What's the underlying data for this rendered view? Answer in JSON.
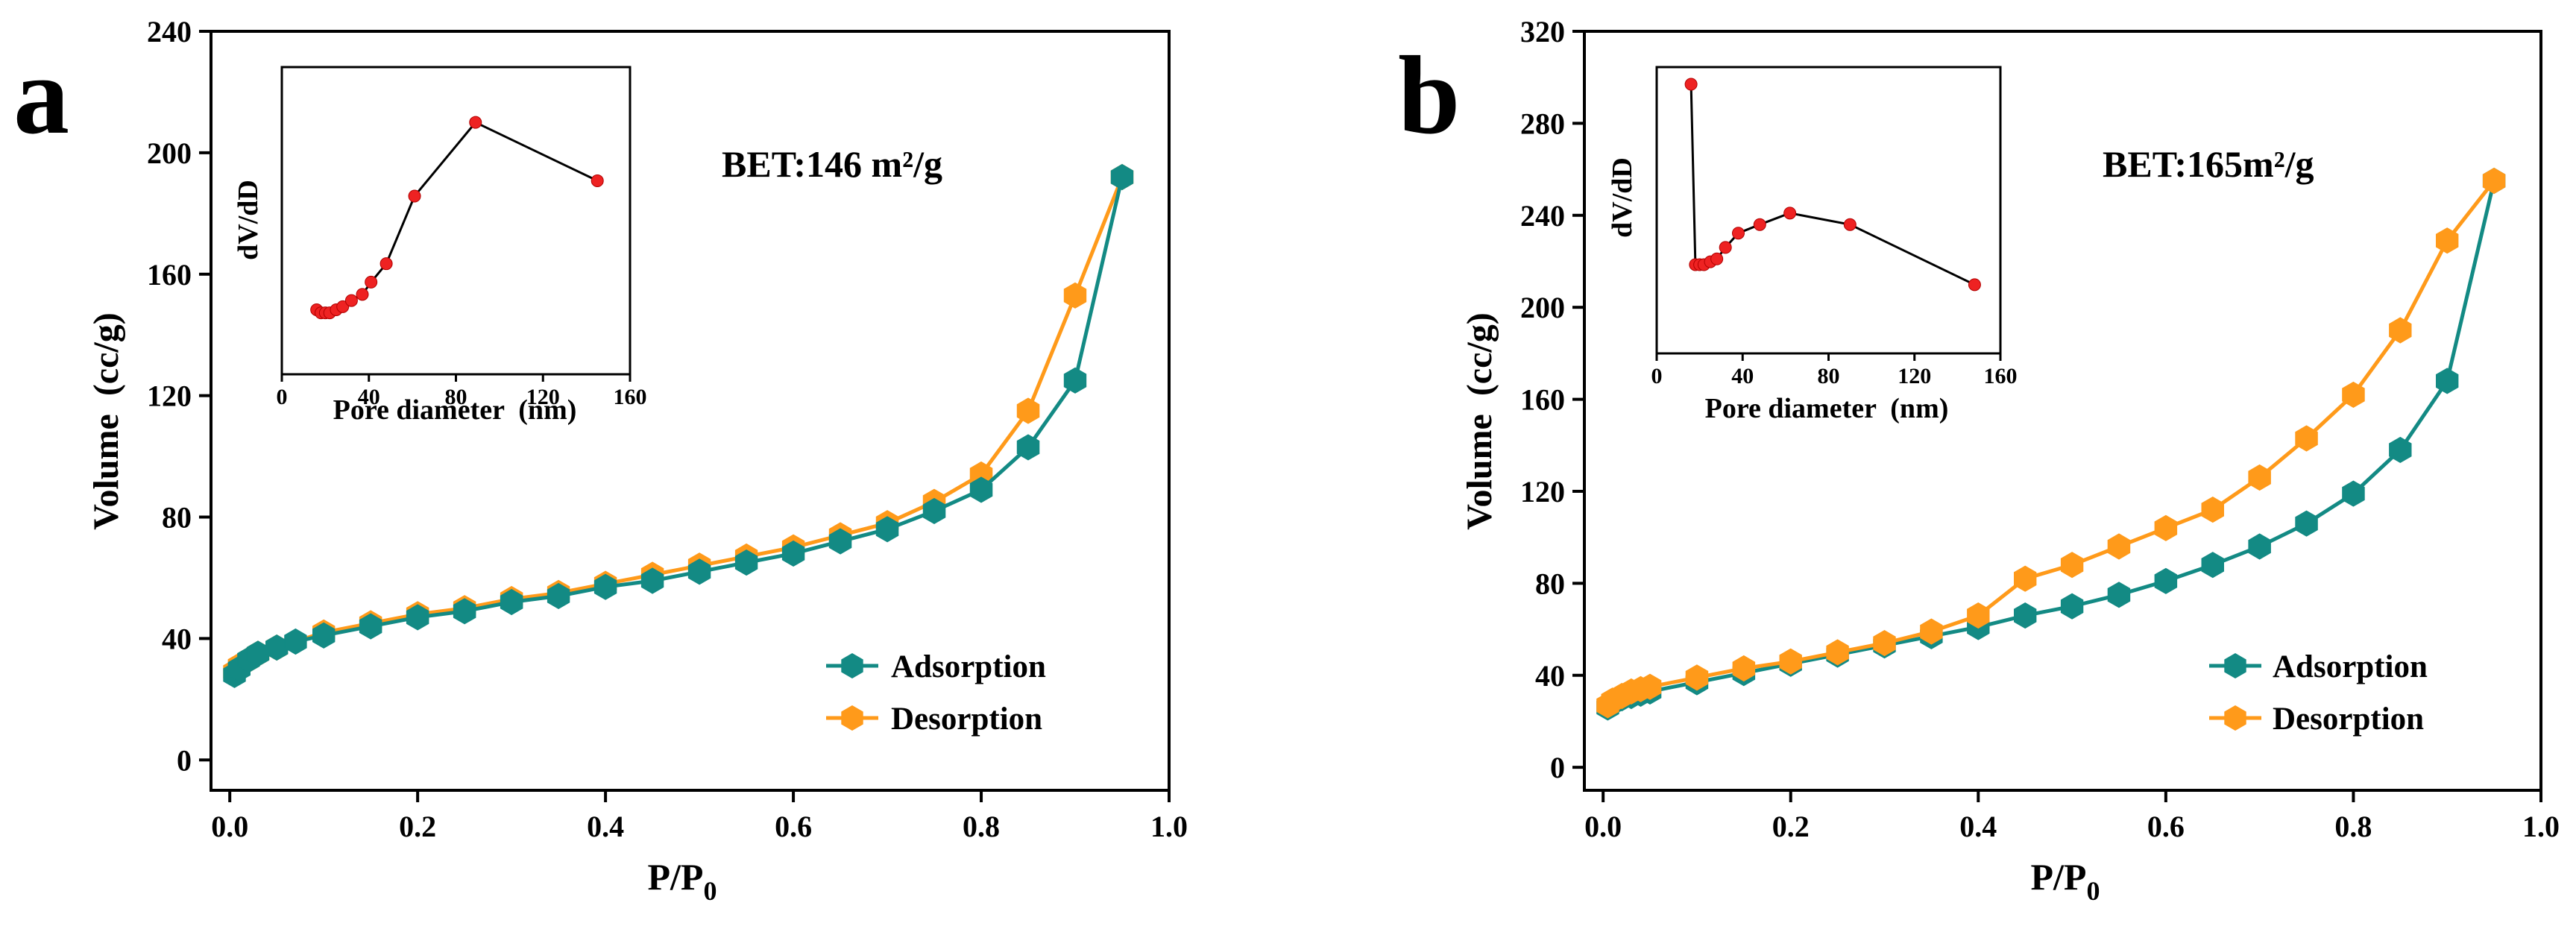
{
  "figure": {
    "panels": [
      {
        "label": "a",
        "bet_text": "BET:146 m²/g",
        "xlabel_main": "P/P",
        "xlabel_sub": "0",
        "ylabel": "Volume  (cc/g)",
        "legend": [
          "Adsorption",
          "Desorption"
        ],
        "inset": {
          "xlabel": "Pore diameter  (nm)",
          "ylabel": "dV/dD"
        }
      },
      {
        "label": "b",
        "bet_text": "BET:165m²/g",
        "xlabel_main": "P/P",
        "xlabel_sub": "0",
        "ylabel": "Volume  (cc/g)",
        "legend": [
          "Adsorption",
          "Desorption"
        ],
        "inset": {
          "xlabel": "Pore diameter  (nm)",
          "ylabel": "dV/dD"
        }
      }
    ]
  },
  "colors": {
    "adsorption": "#138a84",
    "desorption": "#ff9a1a",
    "inset_point": "#ee2222",
    "axis": "#000000"
  },
  "chart_data": [
    {
      "type": "line",
      "title": "a",
      "xlabel": "P/P0",
      "ylabel": "Volume  (cc/g)",
      "xlim": [
        -0.02,
        1.0
      ],
      "ylim": [
        -10,
        240
      ],
      "xticks": [
        0.0,
        0.2,
        0.4,
        0.6,
        0.8,
        1.0
      ],
      "yticks": [
        0,
        40,
        80,
        120,
        160,
        200,
        240
      ],
      "annotation": "BET:146 m²/g",
      "legend_position": "bottom-right",
      "series": [
        {
          "name": "Adsorption",
          "x": [
            0.005,
            0.01,
            0.02,
            0.03,
            0.05,
            0.07,
            0.1,
            0.15,
            0.2,
            0.25,
            0.3,
            0.35,
            0.4,
            0.45,
            0.5,
            0.55,
            0.6,
            0.65,
            0.7,
            0.75,
            0.8,
            0.85,
            0.9,
            0.95
          ],
          "y": [
            28,
            30,
            33,
            35,
            37,
            39,
            41,
            44,
            47,
            49,
            52,
            54,
            57,
            59,
            62,
            65,
            68,
            72,
            76,
            82,
            89,
            103,
            125,
            192
          ]
        },
        {
          "name": "Desorption",
          "x": [
            0.005,
            0.01,
            0.02,
            0.03,
            0.05,
            0.1,
            0.15,
            0.2,
            0.25,
            0.3,
            0.35,
            0.4,
            0.45,
            0.5,
            0.55,
            0.6,
            0.65,
            0.7,
            0.75,
            0.8,
            0.85,
            0.9,
            0.95
          ],
          "y": [
            29,
            31,
            33,
            35,
            37,
            42,
            45,
            48,
            50,
            53,
            55,
            58,
            61,
            64,
            67,
            70,
            74,
            78,
            85,
            94,
            115,
            153,
            192
          ]
        }
      ],
      "inset": {
        "type": "line",
        "xlabel": "Pore diameter  (nm)",
        "ylabel": "dV/dD",
        "xlim": [
          0,
          160
        ],
        "ylim": [
          0,
          1.0
        ],
        "xticks": [
          0,
          40,
          80,
          120,
          160
        ],
        "x": [
          16,
          18,
          20,
          22,
          25,
          28,
          32,
          37,
          41,
          48,
          61,
          89,
          145
        ],
        "y": [
          0.21,
          0.2,
          0.2,
          0.2,
          0.21,
          0.22,
          0.24,
          0.26,
          0.3,
          0.36,
          0.58,
          0.82,
          0.63
        ]
      }
    },
    {
      "type": "line",
      "title": "b",
      "xlabel": "P/P0",
      "ylabel": "Volume  (cc/g)",
      "xlim": [
        -0.02,
        1.0
      ],
      "ylim": [
        -10,
        320
      ],
      "xticks": [
        0.0,
        0.2,
        0.4,
        0.6,
        0.8,
        1.0
      ],
      "yticks": [
        0,
        40,
        80,
        120,
        160,
        200,
        240,
        280,
        320
      ],
      "annotation": "BET:165m²/g",
      "legend_position": "bottom-right",
      "series": [
        {
          "name": "Adsorption",
          "x": [
            0.005,
            0.01,
            0.02,
            0.03,
            0.04,
            0.05,
            0.1,
            0.15,
            0.2,
            0.25,
            0.3,
            0.35,
            0.4,
            0.45,
            0.5,
            0.55,
            0.6,
            0.65,
            0.7,
            0.75,
            0.8,
            0.85,
            0.9,
            0.95
          ],
          "y": [
            26,
            28,
            30,
            31,
            32,
            33,
            37,
            41,
            45,
            49,
            53,
            57,
            61,
            66,
            70,
            75,
            81,
            88,
            96,
            106,
            119,
            138,
            168,
            255
          ]
        },
        {
          "name": "Desorption",
          "x": [
            0.005,
            0.01,
            0.02,
            0.03,
            0.04,
            0.05,
            0.1,
            0.15,
            0.2,
            0.25,
            0.3,
            0.35,
            0.4,
            0.45,
            0.5,
            0.55,
            0.6,
            0.65,
            0.7,
            0.75,
            0.8,
            0.85,
            0.9,
            0.95
          ],
          "y": [
            27,
            29,
            31,
            33,
            34,
            35,
            39,
            43,
            46,
            50,
            54,
            59,
            66,
            82,
            88,
            96,
            104,
            112,
            126,
            143,
            162,
            190,
            229,
            255
          ]
        }
      ],
      "inset": {
        "type": "line",
        "xlabel": "Pore diameter  (nm)",
        "ylabel": "dV/dD",
        "xlim": [
          0,
          160
        ],
        "ylim": [
          0,
          1.0
        ],
        "xticks": [
          0,
          40,
          80,
          120,
          160
        ],
        "x": [
          16,
          18,
          20,
          22,
          25,
          28,
          32,
          38,
          48,
          62,
          90,
          148
        ],
        "y": [
          0.94,
          0.31,
          0.31,
          0.31,
          0.32,
          0.33,
          0.37,
          0.42,
          0.45,
          0.49,
          0.45,
          0.24
        ]
      }
    }
  ]
}
